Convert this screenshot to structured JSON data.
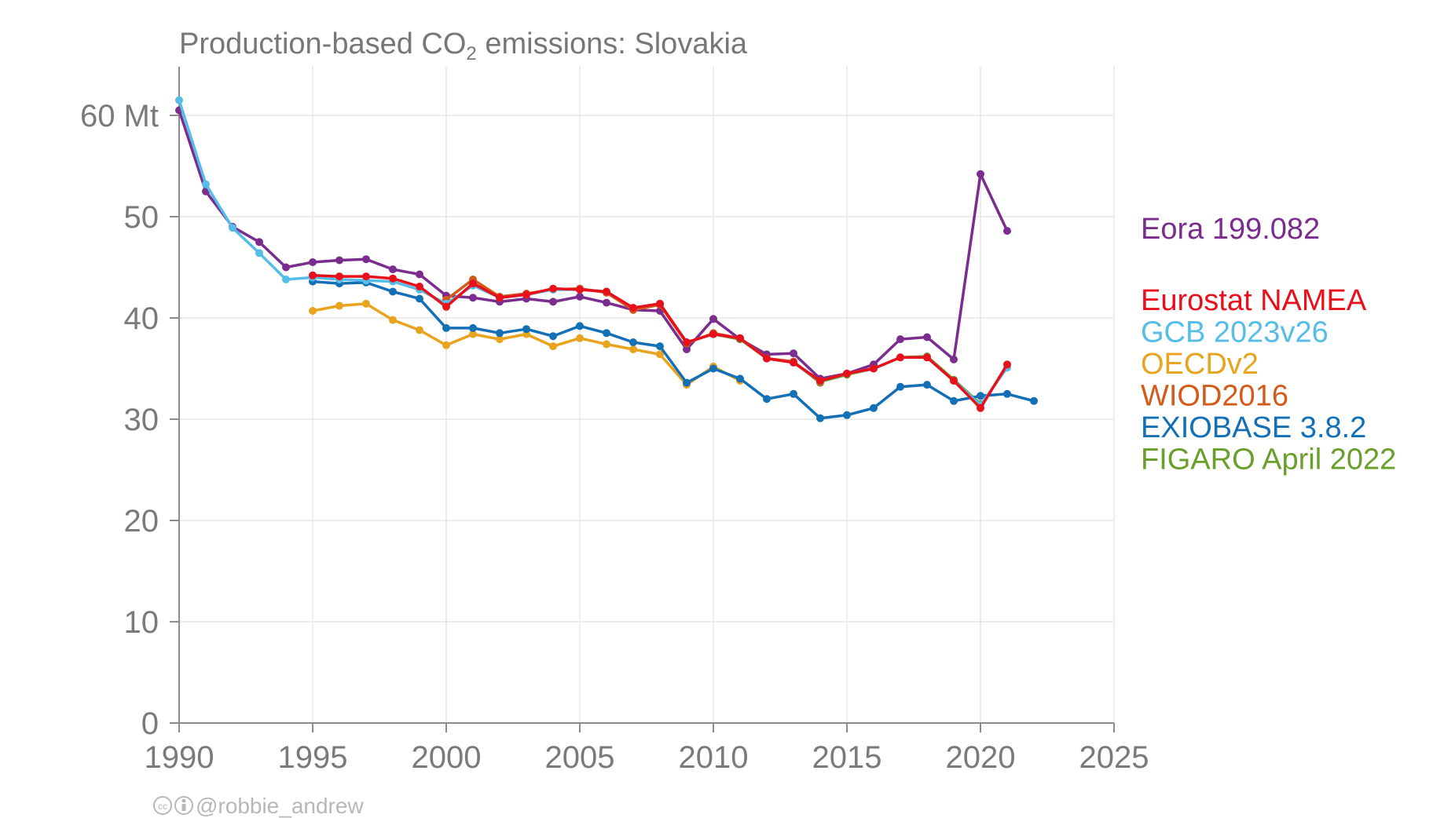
{
  "chart_data": {
    "type": "line",
    "title": {
      "prefix": "Production-based CO",
      "subscript": "2",
      "suffix": " emissions: Slovakia"
    },
    "credit": "@robbie_andrew",
    "xlim": [
      1990,
      2025
    ],
    "ylim": [
      0,
      65
    ],
    "x_ticks": [
      {
        "value": 1990,
        "label": "1990"
      },
      {
        "value": 1995,
        "label": "1995"
      },
      {
        "value": 2000,
        "label": "2000"
      },
      {
        "value": 2005,
        "label": "2005"
      },
      {
        "value": 2010,
        "label": "2010"
      },
      {
        "value": 2015,
        "label": "2015"
      },
      {
        "value": 2020,
        "label": "2020"
      },
      {
        "value": 2025,
        "label": "2025"
      }
    ],
    "y_ticks": [
      {
        "value": 0,
        "label": "0"
      },
      {
        "value": 10,
        "label": "10"
      },
      {
        "value": 20,
        "label": "20"
      },
      {
        "value": 30,
        "label": "30"
      },
      {
        "value": 40,
        "label": "40"
      },
      {
        "value": 50,
        "label": "50"
      },
      {
        "value": 60,
        "label": "60 Mt"
      }
    ],
    "grid": true,
    "legend_position": "right",
    "series": [
      {
        "name": "Eora 199.082",
        "color": "#7b2d8e",
        "legend_group": "top",
        "points": [
          [
            1990,
            60.5
          ],
          [
            1991,
            52.5
          ],
          [
            1992,
            49.0
          ],
          [
            1993,
            47.5
          ],
          [
            1994,
            45.0
          ],
          [
            1995,
            45.5
          ],
          [
            1996,
            45.7
          ],
          [
            1997,
            45.8
          ],
          [
            1998,
            44.8
          ],
          [
            1999,
            44.3
          ],
          [
            2000,
            42.2
          ],
          [
            2001,
            42.0
          ],
          [
            2002,
            41.6
          ],
          [
            2003,
            41.9
          ],
          [
            2004,
            41.6
          ],
          [
            2005,
            42.1
          ],
          [
            2006,
            41.5
          ],
          [
            2007,
            40.8
          ],
          [
            2008,
            40.7
          ],
          [
            2009,
            36.9
          ],
          [
            2010,
            39.9
          ],
          [
            2011,
            37.9
          ],
          [
            2012,
            36.4
          ],
          [
            2013,
            36.5
          ],
          [
            2014,
            34.0
          ],
          [
            2015,
            34.5
          ],
          [
            2016,
            35.4
          ],
          [
            2017,
            37.9
          ],
          [
            2018,
            38.1
          ],
          [
            2019,
            35.9
          ],
          [
            2020,
            54.2
          ],
          [
            2021,
            48.6
          ]
        ]
      },
      {
        "name": "OECDv2",
        "color": "#e8a41e",
        "legend_group": "bottom",
        "points": [
          [
            1995,
            40.7
          ],
          [
            1996,
            41.2
          ],
          [
            1997,
            41.4
          ],
          [
            1998,
            39.8
          ],
          [
            1999,
            38.8
          ],
          [
            2000,
            37.3
          ],
          [
            2001,
            38.4
          ],
          [
            2002,
            37.9
          ],
          [
            2003,
            38.4
          ],
          [
            2004,
            37.2
          ],
          [
            2005,
            38.0
          ],
          [
            2006,
            37.4
          ],
          [
            2007,
            36.9
          ],
          [
            2008,
            36.4
          ],
          [
            2009,
            33.4
          ],
          [
            2010,
            35.2
          ],
          [
            2011,
            33.8
          ]
        ]
      },
      {
        "name": "WIOD2016",
        "color": "#d45a1a",
        "legend_group": "bottom",
        "points": [
          [
            2000,
            41.8
          ],
          [
            2001,
            43.8
          ],
          [
            2002,
            42.1
          ],
          [
            2003,
            42.4
          ],
          [
            2004,
            42.8
          ],
          [
            2005,
            42.9
          ],
          [
            2006,
            42.5
          ],
          [
            2007,
            40.8
          ],
          [
            2008,
            41.3
          ],
          [
            2009,
            37.5
          ],
          [
            2010,
            38.5
          ],
          [
            2011,
            38.0
          ],
          [
            2012,
            36.0
          ],
          [
            2013,
            35.7
          ],
          [
            2014,
            33.6
          ]
        ]
      },
      {
        "name": "FIGARO April 2022",
        "color": "#6a9f2a",
        "legend_group": "bottom",
        "points": [
          [
            2010,
            38.4
          ],
          [
            2011,
            37.9
          ],
          [
            2012,
            36.0
          ],
          [
            2013,
            35.6
          ],
          [
            2014,
            33.7
          ],
          [
            2015,
            34.4
          ],
          [
            2016,
            35.0
          ],
          [
            2017,
            36.1
          ],
          [
            2018,
            36.2
          ],
          [
            2019,
            33.9
          ],
          [
            2020,
            31.5
          ]
        ]
      },
      {
        "name": "EXIOBASE 3.8.2",
        "color": "#1370b6",
        "legend_group": "bottom",
        "points": [
          [
            1995,
            43.6
          ],
          [
            1996,
            43.4
          ],
          [
            1997,
            43.5
          ],
          [
            1998,
            42.6
          ],
          [
            1999,
            41.9
          ],
          [
            2000,
            39.0
          ],
          [
            2001,
            39.0
          ],
          [
            2002,
            38.5
          ],
          [
            2003,
            38.9
          ],
          [
            2004,
            38.2
          ],
          [
            2005,
            39.2
          ],
          [
            2006,
            38.5
          ],
          [
            2007,
            37.6
          ],
          [
            2008,
            37.2
          ],
          [
            2009,
            33.6
          ],
          [
            2010,
            35.0
          ],
          [
            2011,
            34.0
          ],
          [
            2012,
            32.0
          ],
          [
            2013,
            32.5
          ],
          [
            2014,
            30.1
          ],
          [
            2015,
            30.4
          ],
          [
            2016,
            31.1
          ],
          [
            2017,
            33.2
          ],
          [
            2018,
            33.4
          ],
          [
            2019,
            31.8
          ],
          [
            2020,
            32.3
          ],
          [
            2021,
            32.5
          ],
          [
            2022,
            31.8
          ]
        ]
      },
      {
        "name": "GCB 2023v26",
        "color": "#56bde8",
        "legend_group": "bottom",
        "points": [
          [
            1990,
            61.5
          ],
          [
            1991,
            53.2
          ],
          [
            1992,
            48.9
          ],
          [
            1993,
            46.4
          ],
          [
            1994,
            43.8
          ],
          [
            1995,
            44.0
          ],
          [
            1996,
            43.8
          ],
          [
            1997,
            43.7
          ],
          [
            1998,
            43.6
          ],
          [
            1999,
            42.8
          ],
          [
            2000,
            41.4
          ],
          [
            2001,
            43.2
          ],
          [
            2002,
            42.0
          ],
          [
            2003,
            42.3
          ],
          [
            2004,
            42.8
          ],
          [
            2005,
            42.8
          ],
          [
            2006,
            42.6
          ],
          [
            2007,
            41.0
          ],
          [
            2008,
            41.4
          ],
          [
            2009,
            37.6
          ],
          [
            2010,
            38.4
          ],
          [
            2011,
            38.0
          ],
          [
            2012,
            36.0
          ],
          [
            2013,
            35.6
          ],
          [
            2014,
            33.8
          ],
          [
            2015,
            34.5
          ],
          [
            2016,
            35.0
          ],
          [
            2017,
            36.1
          ],
          [
            2018,
            36.1
          ],
          [
            2019,
            33.8
          ],
          [
            2020,
            31.4
          ],
          [
            2021,
            35.1
          ]
        ]
      },
      {
        "name": "Eurostat NAMEA",
        "color": "#e8101b",
        "legend_group": "bottom",
        "points": [
          [
            1995,
            44.2
          ],
          [
            1996,
            44.1
          ],
          [
            1997,
            44.1
          ],
          [
            1998,
            43.9
          ],
          [
            1999,
            43.1
          ],
          [
            2000,
            41.1
          ],
          [
            2001,
            43.4
          ],
          [
            2002,
            42.0
          ],
          [
            2003,
            42.3
          ],
          [
            2004,
            42.9
          ],
          [
            2005,
            42.8
          ],
          [
            2006,
            42.6
          ],
          [
            2007,
            41.0
          ],
          [
            2008,
            41.4
          ],
          [
            2009,
            37.6
          ],
          [
            2010,
            38.4
          ],
          [
            2011,
            38.0
          ],
          [
            2012,
            36.0
          ],
          [
            2013,
            35.6
          ],
          [
            2014,
            33.8
          ],
          [
            2015,
            34.5
          ],
          [
            2016,
            35.0
          ],
          [
            2017,
            36.1
          ],
          [
            2018,
            36.1
          ],
          [
            2019,
            33.8
          ],
          [
            2020,
            31.1
          ],
          [
            2021,
            35.4
          ]
        ]
      }
    ],
    "legend_order": [
      "Eora 199.082",
      "Eurostat NAMEA",
      "GCB 2023v26",
      "OECDv2",
      "WIOD2016",
      "EXIOBASE 3.8.2",
      "FIGARO April 2022"
    ]
  }
}
